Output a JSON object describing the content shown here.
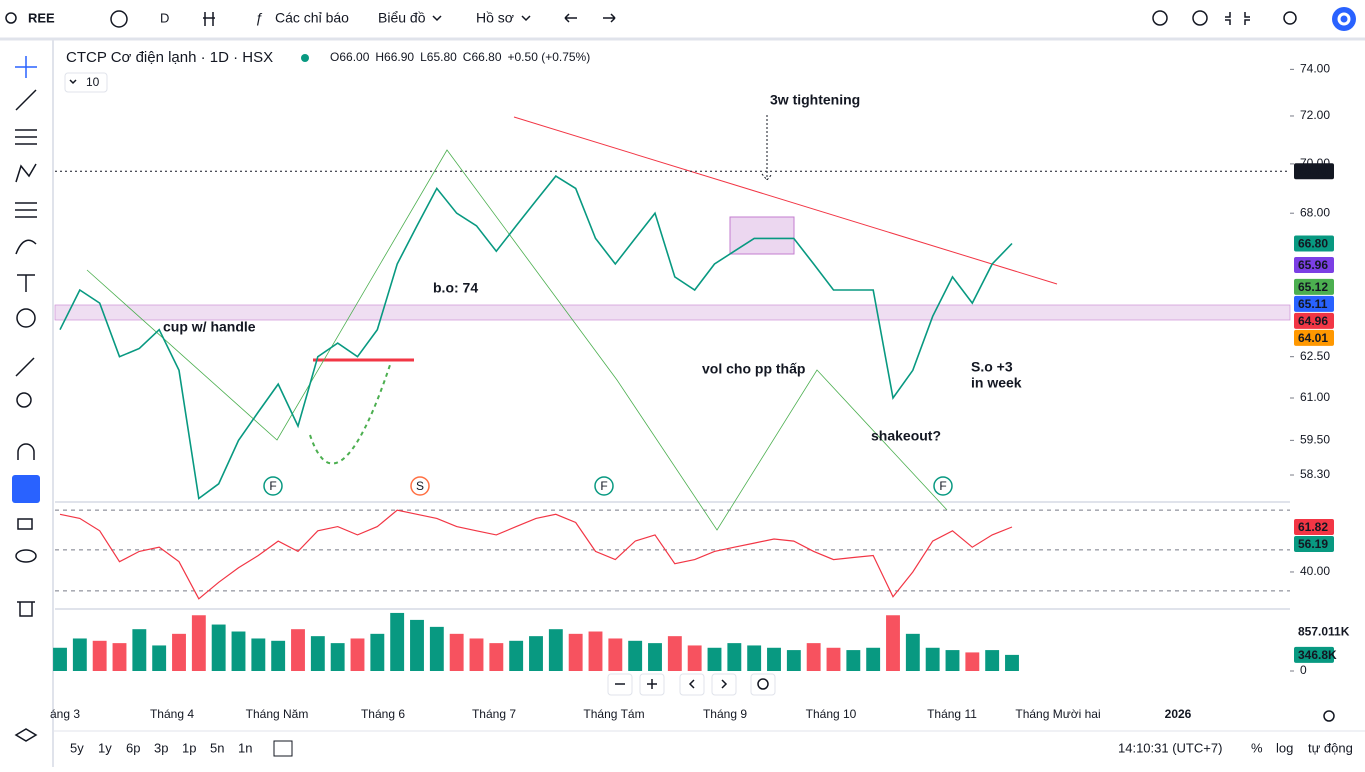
{
  "toolbar": {
    "symbol": "REE",
    "interval": "D",
    "indicators": "Các chỉ báo",
    "chart_type": "Biểu đồ",
    "profile": "Hồ sơ"
  },
  "legend": {
    "title": "CTCP Cơ điện lạnh · 1D · HSX",
    "ohlc": [
      "O",
      "66.00",
      "H",
      "66.90",
      "L",
      "65.80",
      "C",
      "66.80"
    ],
    "change": "+0.50 (+0.75%)",
    "length": "10"
  },
  "chart_data": [
    {
      "type": "line",
      "log_scale": true,
      "color": "#089981",
      "ylim": [
        57.45,
        75.2
      ],
      "yticks": [
        {
          "value": 74,
          "label": "74.00"
        },
        {
          "value": 72,
          "label": "72.00"
        },
        {
          "value": 70,
          "label": "70.00"
        },
        {
          "value": 68,
          "label": "68.00"
        },
        {
          "value": 62.5,
          "label": "62.50"
        },
        {
          "value": 61,
          "label": "61.00"
        },
        {
          "value": 59.5,
          "label": "59.50"
        },
        {
          "value": 58.3,
          "label": "58.30"
        }
      ],
      "values": [
        63.5,
        65,
        64.5,
        62.5,
        62.8,
        63.5,
        62,
        57.5,
        58,
        59.5,
        60.5,
        61.5,
        60,
        62.5,
        63,
        62.5,
        63.5,
        66,
        67.5,
        69,
        68,
        67.5,
        66.5,
        67.5,
        68.5,
        69.5,
        69,
        67,
        66,
        67,
        68,
        65.5,
        65,
        66,
        66.5,
        67,
        67,
        67,
        66,
        65,
        65,
        65,
        61,
        62,
        64,
        65.5,
        64.5,
        66,
        66.8
      ],
      "price_labels": [
        {
          "value": 69.7,
          "label": "69.70",
          "color": "#131722"
        },
        {
          "value": 66.8,
          "label": "66.80",
          "color": "#089981"
        },
        {
          "value": 65.96,
          "label": "65.96",
          "color": "#7b3fe4"
        },
        {
          "value": 65.12,
          "label": "65.12",
          "color": "#4caf50"
        },
        {
          "value": 65.11,
          "label": "65.11",
          "color": "#2962ff"
        },
        {
          "value": 64.96,
          "label": "64.96",
          "color": "#f23645"
        },
        {
          "value": 64.01,
          "label": "64.01",
          "color": "#ff9800"
        }
      ],
      "annotations": [
        "3w tightening",
        "b.o: 74",
        "cup w/ handle",
        "vol cho pp thấp",
        "shakeout?",
        "S.o +3",
        "in week"
      ],
      "markers": [
        "F",
        "S",
        "F",
        "F"
      ],
      "time_axis": [
        "áng 3",
        "Tháng 4",
        "Tháng Năm",
        "Tháng 6",
        "Tháng 7",
        "Tháng Tám",
        "Tháng 9",
        "Tháng 10",
        "Tháng 11",
        "Tháng Mười hai",
        "2026"
      ]
    },
    {
      "type": "oscillator",
      "color": "#f23645",
      "ylim": [
        23,
        72.5
      ],
      "yticks": [
        {
          "value": 40,
          "label": "40.00"
        }
      ],
      "values": [
        68,
        66,
        60,
        45,
        50,
        52,
        45,
        27,
        35,
        42,
        48,
        55,
        50,
        60,
        62,
        58,
        62,
        70,
        68,
        66,
        62,
        60,
        58,
        62,
        66,
        68,
        64,
        50,
        46,
        55,
        58,
        44,
        46,
        50,
        52,
        54,
        56,
        55,
        50,
        46,
        47,
        48,
        28,
        40,
        55,
        60,
        52,
        58,
        61.82
      ],
      "price_labels": [
        {
          "value": 61.82,
          "label": "61.82",
          "color": "#f23645"
        },
        {
          "value": 56.19,
          "label": "56.19",
          "color": "#089981"
        }
      ]
    },
    {
      "type": "volume",
      "colors": [
        "#089981",
        "#f7525f"
      ],
      "ylim": [
        0,
        1270000
      ],
      "yticks": [
        0
      ],
      "values": [
        500000,
        700000,
        650000,
        600000,
        900000,
        550000,
        800000,
        1200000,
        1000000,
        850000,
        700000,
        650000,
        900000,
        750000,
        600000,
        700000,
        800000,
        1250000,
        1100000,
        950000,
        800000,
        700000,
        600000,
        650000,
        750000,
        900000,
        800000,
        850000,
        700000,
        650000,
        600000,
        750000,
        550000,
        500000,
        600000,
        550000,
        500000,
        450000,
        600000,
        500000,
        450000,
        500000,
        1200000,
        800000,
        500000,
        450000,
        400000,
        450000,
        346800
      ],
      "price_labels": [
        {
          "value": 857011,
          "label": "857.011K",
          "color": "none"
        },
        {
          "value": 346800,
          "label": "346.8K",
          "color": "#089981"
        }
      ]
    }
  ],
  "bottom_bar": {
    "ranges": [
      "5y",
      "1y",
      "6p",
      "3p",
      "1p",
      "5n",
      "1n"
    ],
    "time": "14:10:31 (UTC+7)",
    "percent": "%",
    "log": "log",
    "auto": "tự động"
  }
}
